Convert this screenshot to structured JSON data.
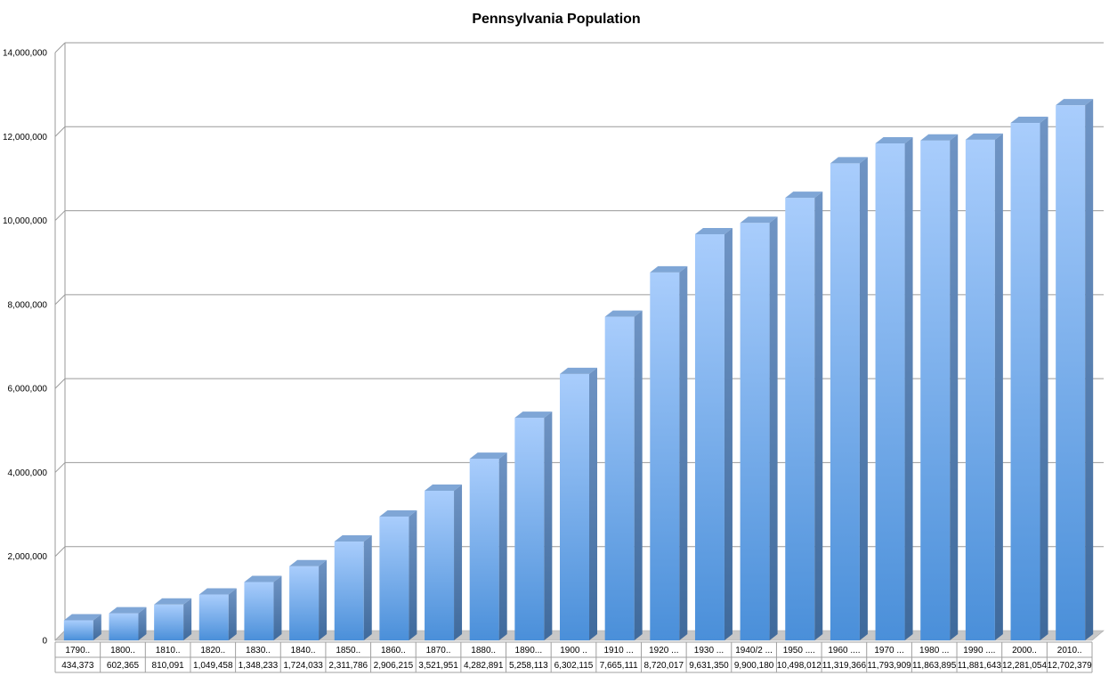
{
  "chart_data": {
    "type": "bar",
    "title": "Pennsylvania Population",
    "xlabel": "",
    "ylabel": "",
    "ylim": [
      0,
      14000000
    ],
    "y_ticks": [
      "0",
      "2,000,000",
      "4,000,000",
      "6,000,000",
      "8,000,000",
      "10,000,000",
      "12,000,000",
      "14,000,000"
    ],
    "y_tick_values": [
      0,
      2000000,
      4000000,
      6000000,
      8000000,
      10000000,
      12000000,
      14000000
    ],
    "grid": true,
    "legend": "none",
    "style": "3d-column",
    "colors": {
      "bar_light": "#a9cdfc",
      "bar_dark": "#4a8fd9",
      "bar_side": "#4f79ab",
      "bar_top": "#7fa6d6",
      "floor": "#c8c8c8",
      "grid": "#9a9a9a"
    },
    "categories": [
      "1790..",
      "1800..",
      "1810..",
      "1820..",
      "1830..",
      "1840..",
      "1850..",
      "1860..",
      "1870..",
      "1880..",
      "1890...",
      "1900 ..",
      "1910 ...",
      "1920 ...",
      "1930 ...",
      "1940/2 ...",
      "1950 ....",
      "1960 ....",
      "1970 ...",
      "1980 ...",
      "1990 ....",
      "2000..",
      "2010.."
    ],
    "values": [
      434373,
      602365,
      810091,
      1049458,
      1348233,
      1724033,
      2311786,
      2906215,
      3521951,
      4282891,
      5258113,
      6302115,
      7665111,
      8720017,
      9631350,
      9900180,
      10498012,
      11319366,
      11793909,
      11863895,
      11881643,
      12281054,
      12702379
    ],
    "value_labels": [
      "434,373",
      "602,365",
      "810,091",
      "1,049,458",
      "1,348,233",
      "1,724,033",
      "2,311,786",
      "2,906,215",
      "3,521,951",
      "4,282,891",
      "5,258,113",
      "6,302,115",
      "7,665,111",
      "8,720,017",
      "9,631,350",
      "9,900,180",
      "10,498,012",
      "11,319,366",
      "11,793,909",
      "11,863,895",
      "11,881,643",
      "12,281,054",
      "12,702,379"
    ]
  }
}
